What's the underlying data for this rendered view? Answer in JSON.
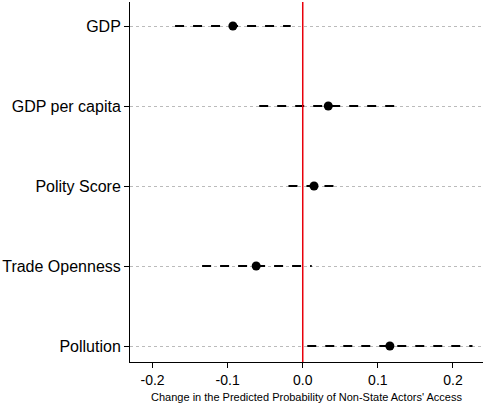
{
  "chart_data": {
    "type": "scatter",
    "orientation": "horizontal",
    "categories": [
      "GDP",
      "GDP per capita",
      "Polity Score",
      "Trade Openness",
      "Pollution"
    ],
    "values": [
      -0.093,
      0.034,
      0.015,
      -0.062,
      0.116
    ],
    "ci_lower": [
      -0.17,
      -0.058,
      -0.019,
      -0.134,
      0.006
    ],
    "ci_upper": [
      -0.016,
      0.126,
      0.048,
      0.012,
      0.226
    ],
    "xlabel": "Change in the Predicted Probability of Non-State Actors' Access",
    "xlim": [
      -0.23,
      0.24
    ],
    "xticks": [
      {
        "value": -0.2,
        "label": "-0.2"
      },
      {
        "value": -0.1,
        "label": "-0.1"
      },
      {
        "value": 0,
        "label": "0.0"
      },
      {
        "value": 0.1,
        "label": "0.1"
      },
      {
        "value": 0.2,
        "label": "0.2"
      }
    ],
    "reference_line": {
      "value": 0,
      "color": "#e8000b"
    },
    "color": "#000000",
    "marker": "circle",
    "line_style": "dash",
    "grid": true
  }
}
